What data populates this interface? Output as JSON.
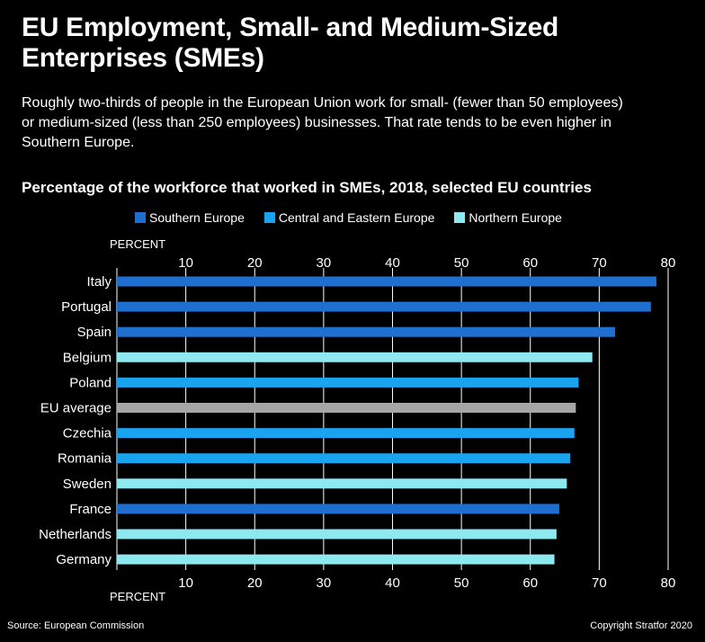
{
  "title": "EU Employment, Small- and Medium-Sized Enterprises (SMEs)",
  "subtitle": "Roughly two-thirds of people in the European Union work for small- (fewer than 50 employees) or medium-sized (less than 250 employees) businesses. That rate tends to be even higher in Southern Europe.",
  "footer": {
    "source": "Source: European Commission",
    "copyright": "Copyright Stratfor 2020"
  },
  "chart_data": {
    "type": "bar",
    "orientation": "horizontal",
    "title": "Percentage of the workforce that worked in SMEs, 2018, selected EU countries",
    "axis_unit": "PERCENT",
    "xlim": [
      0,
      80
    ],
    "ticks": [
      0,
      10,
      20,
      30,
      40,
      50,
      60,
      70,
      80
    ],
    "grid": true,
    "legend_position": "top",
    "legend": [
      {
        "name": "Southern Europe",
        "color": "#1f6fd1"
      },
      {
        "name": "Central and Eastern Europe",
        "color": "#1aa3ee"
      },
      {
        "name": "Northern Europe",
        "color": "#8ee8f0"
      }
    ],
    "categories": [
      "Italy",
      "Portugal",
      "Spain",
      "Belgium",
      "Poland",
      "EU average",
      "Czechia",
      "Romania",
      "Sweden",
      "France",
      "Netherlands",
      "Germany"
    ],
    "values": [
      78.3,
      77.5,
      72.3,
      69.0,
      67.0,
      66.6,
      66.4,
      65.8,
      65.3,
      64.2,
      63.8,
      63.5
    ],
    "groups": [
      "Southern Europe",
      "Southern Europe",
      "Southern Europe",
      "Northern Europe",
      "Central and Eastern Europe",
      "EU average",
      "Central and Eastern Europe",
      "Central and Eastern Europe",
      "Northern Europe",
      "Southern Europe",
      "Northern Europe",
      "Northern Europe"
    ],
    "eu_average_color": "#a6a6a6"
  }
}
